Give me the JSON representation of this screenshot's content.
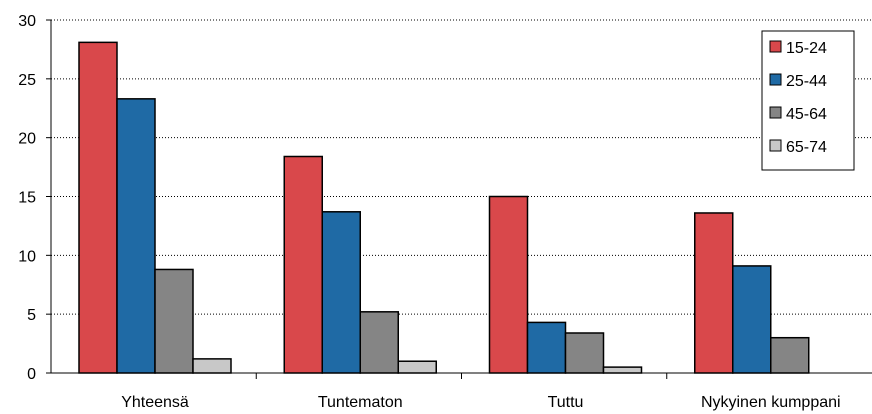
{
  "chart_data": {
    "type": "bar",
    "title": "",
    "xlabel": "",
    "ylabel": "",
    "ylim": [
      0,
      30
    ],
    "yticks": [
      "0",
      "5",
      "10",
      "15",
      "20",
      "25",
      "30"
    ],
    "grid": "horizontal dotted",
    "legend_position": "top-right",
    "categories": [
      "Yhteensä",
      "Tuntematon",
      "Tuttu",
      "Nykyinen kumppani"
    ],
    "series": [
      {
        "name": "15-24",
        "color": "#d9484b",
        "values": [
          28.1,
          18.4,
          15.0,
          13.6
        ]
      },
      {
        "name": "25-44",
        "color": "#1f6aa5",
        "values": [
          23.3,
          13.7,
          4.3,
          9.1
        ]
      },
      {
        "name": "45-64",
        "color": "#858585",
        "values": [
          8.8,
          5.2,
          3.4,
          3.0
        ]
      },
      {
        "name": "65-74",
        "color": "#c8c8c8",
        "values": [
          1.2,
          1.0,
          0.5,
          0.0
        ]
      }
    ]
  }
}
